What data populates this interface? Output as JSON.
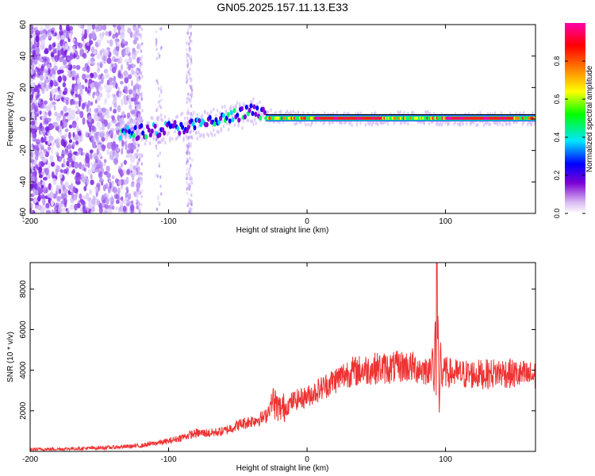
{
  "title": "GN05.2025.157.11.13.E33",
  "chart_data": [
    {
      "type": "heatmap",
      "xlabel": "Height of straight line (km)",
      "ylabel": "Frequency (Hz)",
      "xlim": [
        -200,
        165
      ],
      "ylim": [
        -60,
        60
      ],
      "xticks": [
        "-200",
        "-100",
        "0",
        "100"
      ],
      "yticks": [
        "60",
        "40",
        "20",
        "0",
        "-20",
        "-40",
        "-60"
      ],
      "colorbar": {
        "label": "Normalized spectral amplitude",
        "range": [
          0,
          1
        ],
        "ticks": [
          "0.0",
          "0.2",
          "0.4",
          "0.6",
          "0.8"
        ],
        "colors": [
          "#ffffff",
          "#7b00d4",
          "#0000ff",
          "#00e6ff",
          "#00ff00",
          "#ffff00",
          "#ff8000",
          "#ff0000",
          "#ff00aa"
        ]
      },
      "ridge": {
        "x": [
          -135,
          -120,
          -100,
          -80,
          -60,
          -40,
          -30,
          0,
          20,
          50,
          80,
          100,
          130,
          165
        ],
        "freq": [
          -10,
          -8,
          -6,
          -4,
          0,
          5,
          2,
          0,
          0,
          0,
          1,
          0,
          0,
          0
        ]
      }
    },
    {
      "type": "line",
      "xlabel": "Height of straight line (km)",
      "ylabel": "SNR (10 * v/v)",
      "xlim": [
        -200,
        165
      ],
      "ylim": [
        0,
        9300
      ],
      "xticks": [
        "-200",
        "-100",
        "0",
        "100"
      ],
      "yticks": [
        "2000",
        "4000",
        "6000",
        "8000"
      ],
      "color": "#ee3333",
      "series": [
        {
          "x": [
            -200,
            -180,
            -160,
            -140,
            -120,
            -110,
            -100,
            -90,
            -80,
            -70,
            -60,
            -50,
            -40,
            -30,
            -25,
            -20,
            -15,
            -10,
            0,
            10,
            20,
            30,
            40,
            50,
            60,
            70,
            80,
            85,
            90,
            93,
            95,
            100,
            110,
            120,
            130,
            140,
            150,
            165
          ],
          "y": [
            100,
            120,
            150,
            200,
            280,
            400,
            500,
            700,
            900,
            900,
            1000,
            1300,
            1500,
            1700,
            2500,
            2100,
            2200,
            2500,
            2700,
            3100,
            3500,
            3900,
            4000,
            4100,
            4100,
            4200,
            4100,
            4000,
            4200,
            4300,
            4000,
            3900,
            3800,
            3800,
            3800,
            3900,
            3800,
            3700
          ]
        }
      ]
    }
  ]
}
